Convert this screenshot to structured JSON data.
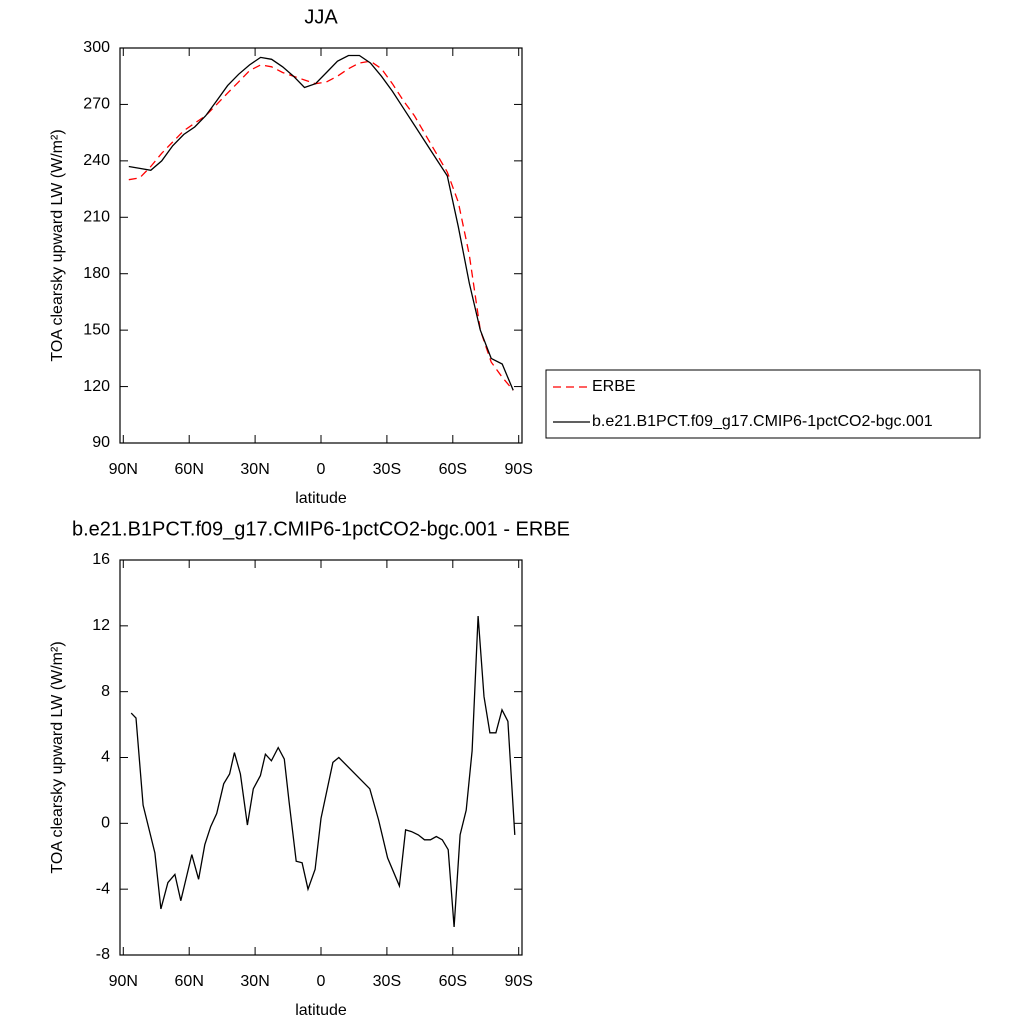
{
  "chart_data": [
    {
      "type": "line",
      "title": "JJA",
      "x_label": "latitude",
      "y_label": "TOA clearsky upward LW (W/m²)",
      "xlim": [
        91.5,
        -91.5
      ],
      "xticks": [
        {
          "value": 90,
          "label": "90N"
        },
        {
          "value": 60,
          "label": "60N"
        },
        {
          "value": 30,
          "label": "30N"
        },
        {
          "value": 0,
          "label": "0"
        },
        {
          "value": -30,
          "label": "30S"
        },
        {
          "value": -60,
          "label": "60S"
        },
        {
          "value": -90,
          "label": "90S"
        }
      ],
      "ylim": [
        90,
        300
      ],
      "yticks": [
        90,
        120,
        150,
        180,
        210,
        240,
        270,
        300
      ],
      "legend": "right",
      "x": [
        87.5,
        82.5,
        77.5,
        72.5,
        67.5,
        62.5,
        57.5,
        52.5,
        47.5,
        42.5,
        37.5,
        32.5,
        27.5,
        22.5,
        17.5,
        12.5,
        7.5,
        2.5,
        -2.5,
        -7.5,
        -12.5,
        -17.5,
        -22.5,
        -27.5,
        -32.5,
        -37.5,
        -42.5,
        -47.5,
        -52.5,
        -57.5,
        -62.5,
        -67.5,
        -72.5,
        -77.5,
        -82.5,
        -87.5
      ],
      "series": [
        {
          "name": "ERBE",
          "color": "#ff0000",
          "line_style": "dashed",
          "values": [
            230,
            231,
            237,
            244,
            250,
            256,
            260,
            264,
            270,
            276,
            282,
            288,
            291,
            290,
            287,
            285,
            283,
            281,
            282,
            285,
            289,
            292,
            293,
            289,
            281,
            272,
            264,
            254,
            244,
            234,
            218,
            190,
            150,
            133,
            125,
            118
          ]
        },
        {
          "name": "b.e21.B1PCT.f09_g17.CMIP6-1pctCO2-bgc.001",
          "color": "#000000",
          "line_style": "solid",
          "values": [
            237,
            236,
            235,
            240,
            248,
            254,
            258,
            264,
            272,
            280,
            286,
            291,
            295,
            294,
            290,
            285,
            279,
            281,
            287,
            293,
            296,
            296,
            292,
            285,
            277,
            268,
            259,
            250,
            241,
            232,
            205,
            175,
            150,
            135,
            132,
            118
          ]
        }
      ]
    },
    {
      "type": "line",
      "title": "b.e21.B1PCT.f09_g17.CMIP6-1pctCO2-bgc.001 - ERBE",
      "x_label": "latitude",
      "y_label": "TOA clearsky upward LW (W/m²)",
      "xlim": [
        91.5,
        -91.5
      ],
      "xticks": [
        {
          "value": 90,
          "label": "90N"
        },
        {
          "value": 60,
          "label": "60N"
        },
        {
          "value": 30,
          "label": "30N"
        },
        {
          "value": 0,
          "label": "0"
        },
        {
          "value": -30,
          "label": "30S"
        },
        {
          "value": -60,
          "label": "60S"
        },
        {
          "value": -90,
          "label": "90S"
        }
      ],
      "ylim": [
        -8,
        16
      ],
      "yticks": [
        -8,
        -4,
        0,
        4,
        8,
        12,
        16
      ],
      "color": "#000000",
      "x": [
        86.4,
        84.2,
        81.0,
        75.6,
        72.9,
        69.7,
        66.5,
        63.8,
        58.8,
        55.7,
        52.9,
        50.2,
        47.5,
        44.3,
        41.6,
        39.4,
        36.7,
        33.5,
        30.8,
        27.6,
        25.3,
        22.6,
        19.5,
        16.7,
        14.5,
        11.3,
        8.6,
        5.9,
        2.7,
        0,
        -5.4,
        -8.1,
        -22.2,
        -26.2,
        -30.3,
        -35.7,
        -38.5,
        -41.2,
        -44.3,
        -47.1,
        -49.8,
        -52.5,
        -55.2,
        -57.9,
        -60.6,
        -63.3,
        -66.1,
        -68.8,
        -71.5,
        -74.2,
        -76.9,
        -79.6,
        -82.4,
        -85.1,
        -88.2
      ],
      "values": [
        6.7,
        6.4,
        1.1,
        -1.8,
        -5.2,
        -3.6,
        -3.1,
        -4.7,
        -1.9,
        -3.4,
        -1.3,
        -0.2,
        0.6,
        2.4,
        3.0,
        4.3,
        3.0,
        -0.1,
        2.1,
        2.9,
        4.2,
        3.8,
        4.6,
        3.9,
        1.3,
        -2.3,
        -2.4,
        -4.0,
        -2.8,
        0.3,
        3.7,
        4.0,
        2.1,
        0.2,
        -2.1,
        -3.8,
        -0.4,
        -0.5,
        -0.7,
        -1.0,
        -1.0,
        -0.8,
        -1.0,
        -1.6,
        -6.3,
        -0.7,
        0.8,
        4.4,
        12.6,
        7.7,
        5.5,
        5.5,
        6.9,
        6.2,
        -0.7
      ]
    }
  ]
}
